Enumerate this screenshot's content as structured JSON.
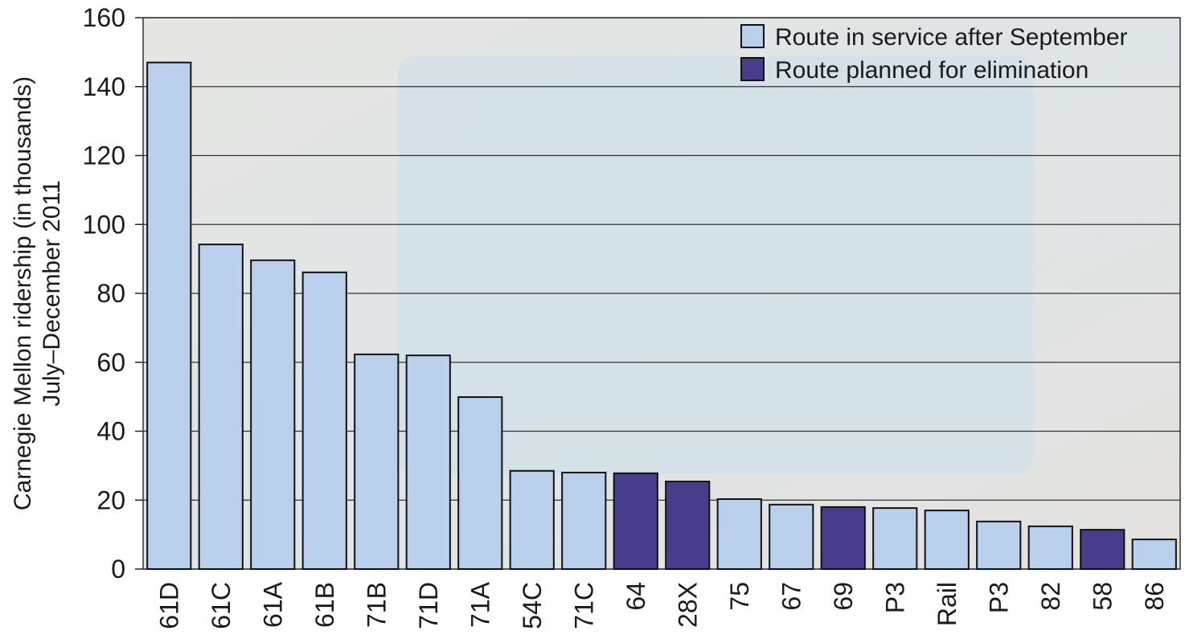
{
  "chart_data": {
    "type": "bar",
    "ylabel": [
      "Carnegie Mellon ridership (in thousands)",
      "July–December 2011"
    ],
    "categories": [
      "61D",
      "61C",
      "61A",
      "61B",
      "71B",
      "71D",
      "71A",
      "54C",
      "71C",
      "64",
      "28X",
      "75",
      "67",
      "69",
      "P3",
      "Rail",
      "P3",
      "82",
      "58",
      "86"
    ],
    "series": [
      {
        "name": "Route in service after September",
        "color": "#b9cfec",
        "values": [
          147,
          94.2,
          89.6,
          86.1,
          62.3,
          62.0,
          49.9,
          28.5,
          28.0,
          null,
          null,
          20.3,
          18.7,
          null,
          17.7,
          17.0,
          13.8,
          12.4,
          null,
          8.6
        ]
      },
      {
        "name": "Route planned for elimination",
        "color": "#483d8b",
        "values": [
          null,
          null,
          null,
          null,
          null,
          null,
          null,
          null,
          null,
          27.8,
          25.4,
          null,
          null,
          18.0,
          null,
          null,
          null,
          null,
          11.4,
          null
        ]
      }
    ],
    "ylim": [
      0,
      160
    ],
    "yticks": [
      0,
      20,
      40,
      60,
      80,
      100,
      120,
      140,
      160
    ],
    "grid": true,
    "legend": "top-right"
  }
}
